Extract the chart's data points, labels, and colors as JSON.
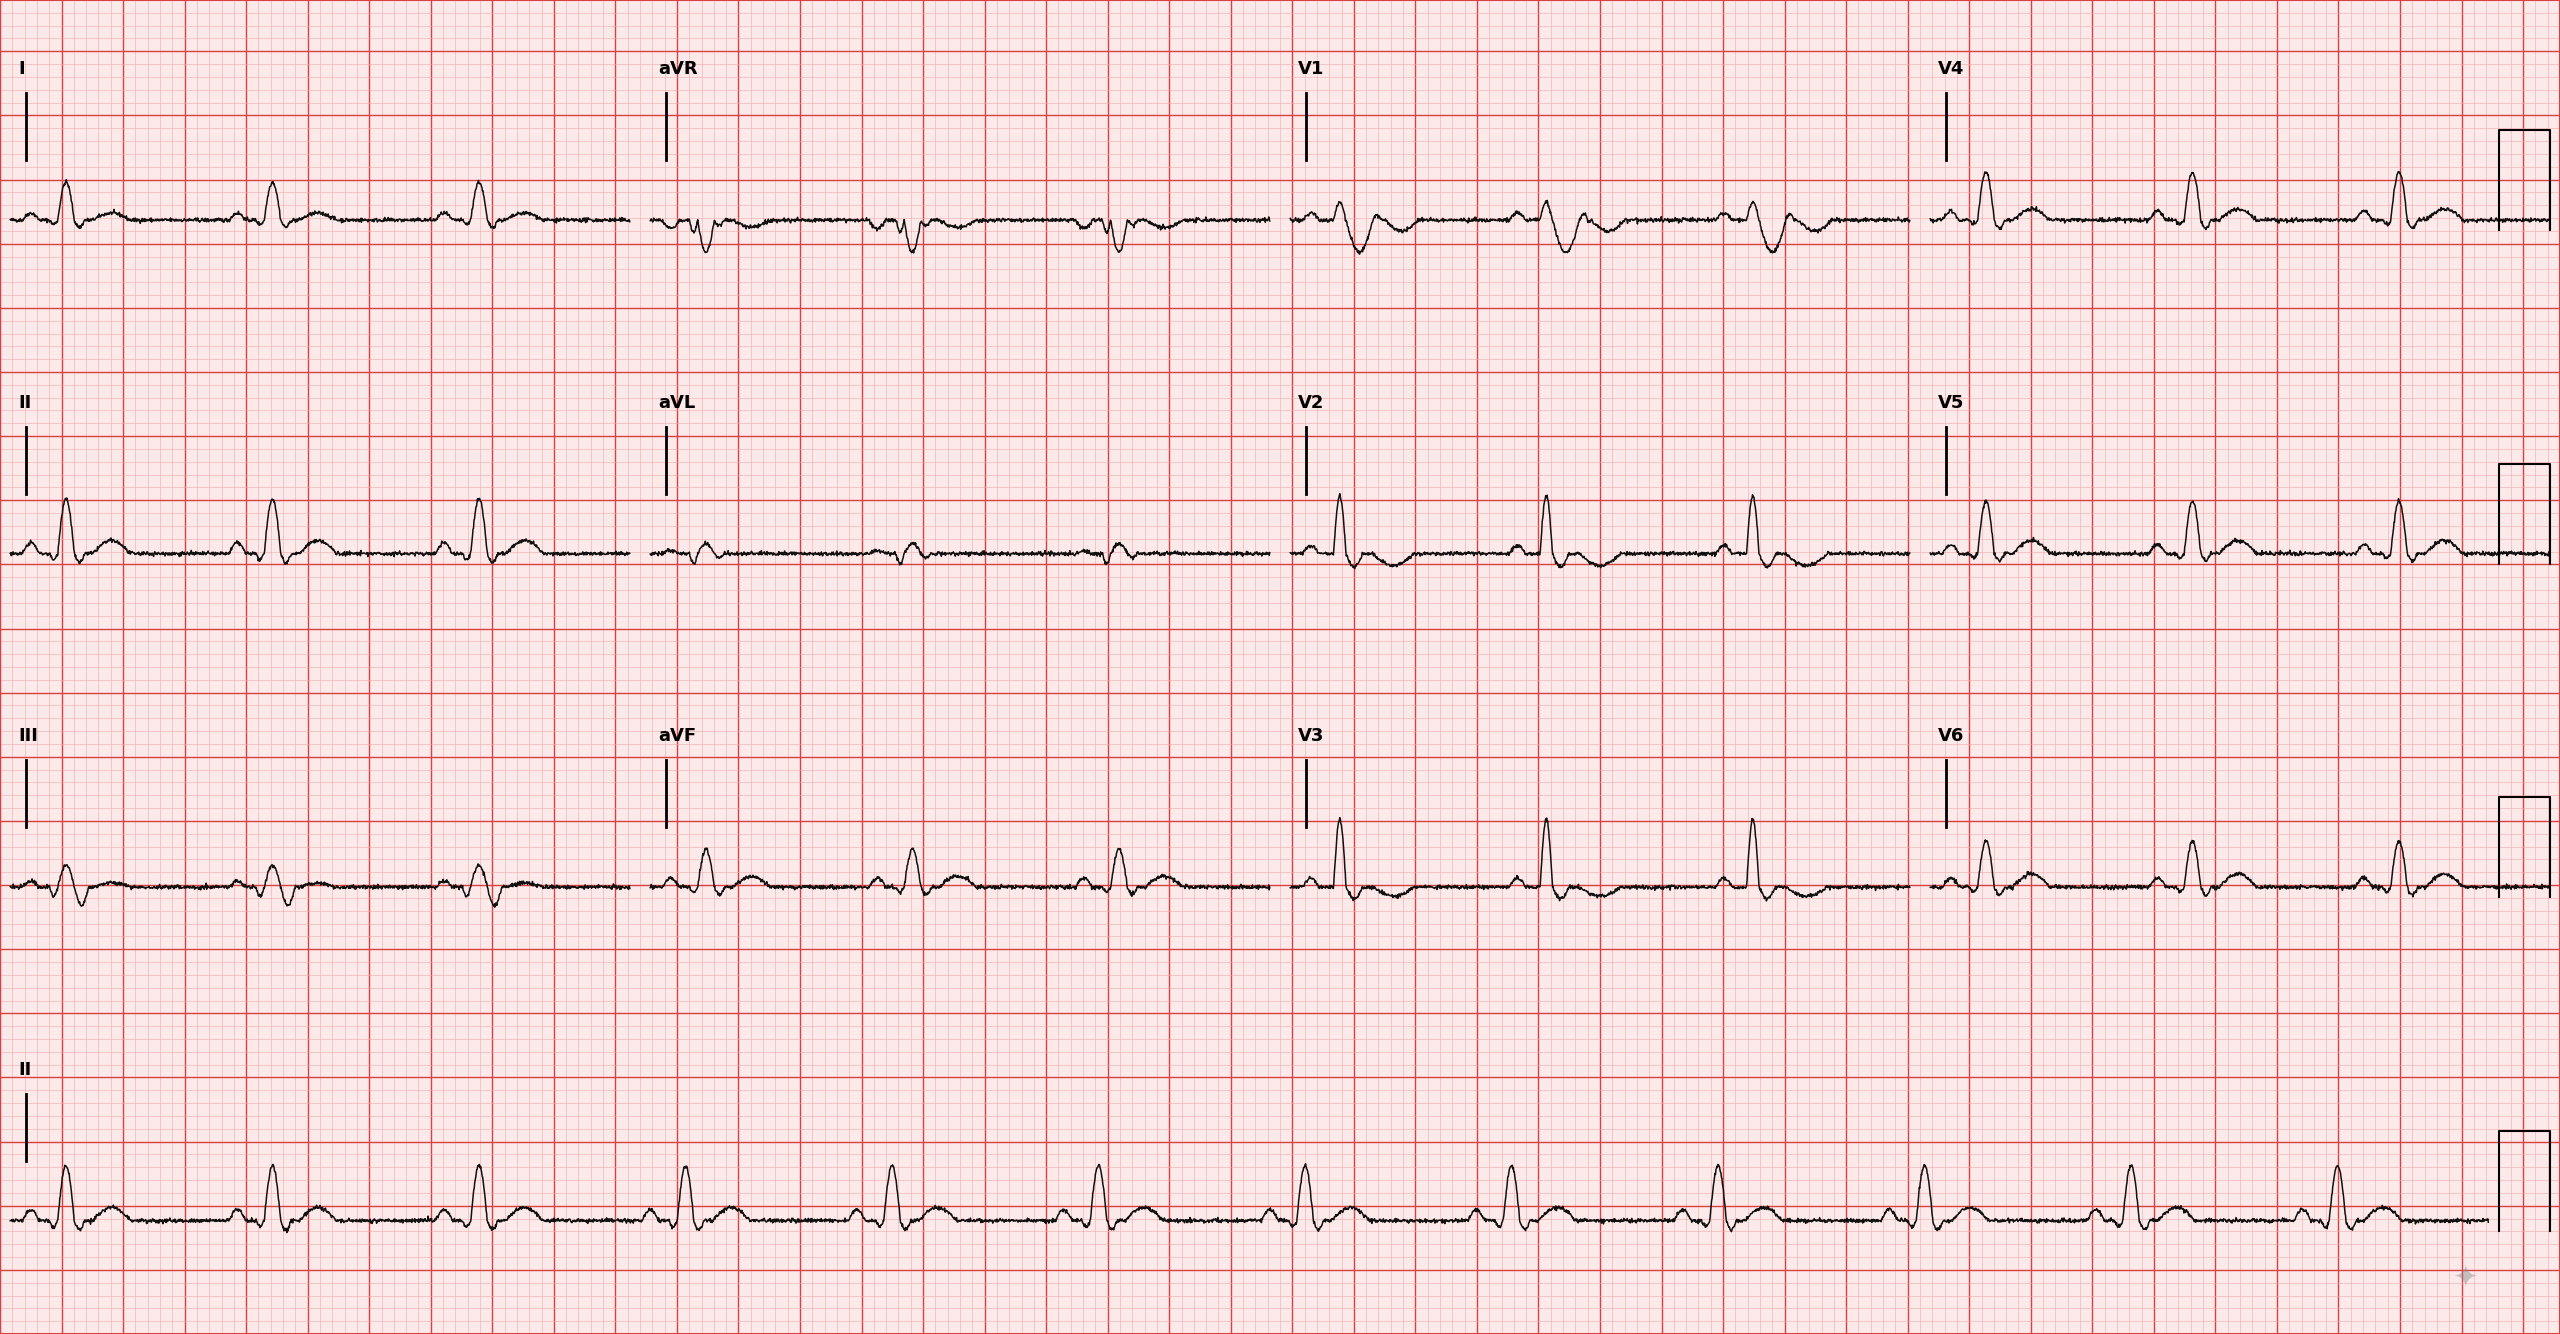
{
  "bg_color": "#FCEAEA",
  "grid_minor_color": "#EFA8A8",
  "grid_major_color": "#D94040",
  "ecg_color": "#111111",
  "ecg_linewidth": 1.1,
  "label_fontsize": 13,
  "minor_lw": 0.4,
  "major_lw": 1.0,
  "border_lw": 1.5,
  "row_labels_col0": [
    "I",
    "II",
    "III",
    "II"
  ],
  "row_labels_col1": [
    "aVR",
    "aVL",
    "aVF",
    ""
  ],
  "row_labels_col2": [
    "V1",
    "V2",
    "V3",
    ""
  ],
  "row_labels_col3": [
    "V4",
    "V5",
    "V6",
    ""
  ],
  "nx_minor": 208,
  "ny_minor": 104,
  "n_rows": 4,
  "hr": 72,
  "duration_seg": 2.5,
  "duration_long": 10.0,
  "sr": 500
}
